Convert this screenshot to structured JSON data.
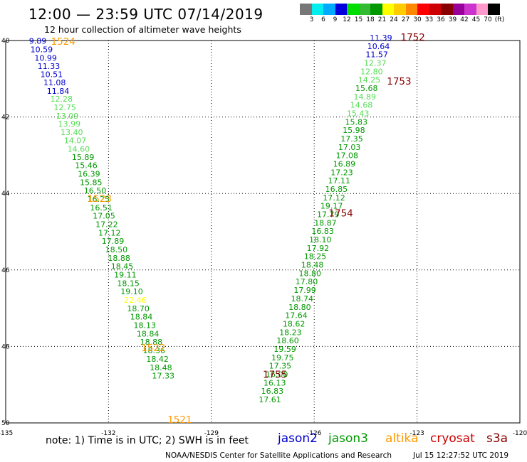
{
  "header": {
    "title": "12:00 — 23:59 UTC 07/14/2019",
    "subtitle": "12 hour collection of altimeter wave heights"
  },
  "colorbar": {
    "colors": [
      "#777777",
      "#00eeee",
      "#00aaff",
      "#0000dd",
      "#00dd00",
      "#33bb33",
      "#009900",
      "#ffff00",
      "#ffcc00",
      "#ff8800",
      "#ff0000",
      "#cc0000",
      "#880000",
      "#990099",
      "#cc33cc",
      "#ff99cc",
      "#000000"
    ],
    "labels": [
      "3",
      "6",
      "9",
      "12",
      "15",
      "18",
      "21",
      "24",
      "27",
      "30",
      "33",
      "36",
      "39",
      "42",
      "45",
      "70",
      "(ft)"
    ]
  },
  "map": {
    "x_ticks": [
      "-135",
      "-132",
      "-129",
      "-126",
      "-123",
      "-120"
    ],
    "y_ticks": [
      "40",
      "42",
      "44",
      "46",
      "48",
      "50"
    ]
  },
  "chart_data": {
    "type": "scatter",
    "axes": {
      "lon_range": [
        -135,
        -120
      ],
      "lat_range": [
        50,
        40
      ]
    },
    "track_colors": {
      "blue": "#0000cc",
      "light": "#55dd55",
      "green": "#009900",
      "yellow": "#ffff00"
    },
    "passes": [
      {
        "name": "1524",
        "color": "#ff9900",
        "lon": -133.68,
        "lat": 40.11
      },
      {
        "name": "1523",
        "color": "#ff9900",
        "lon": -132.62,
        "lat": 44.22
      },
      {
        "name": "1522",
        "color": "#ff9900",
        "lon": -131.05,
        "lat": 48.12
      },
      {
        "name": "1521",
        "color": "#ff9900",
        "lon": -130.28,
        "lat": 50.0
      },
      {
        "name": "1752",
        "color": "#880000",
        "lon": -123.48,
        "lat": 40.0
      },
      {
        "name": "1753",
        "color": "#880000",
        "lon": -123.88,
        "lat": 41.15
      },
      {
        "name": "1754",
        "color": "#880000",
        "lon": -125.58,
        "lat": 44.6
      },
      {
        "name": "1755",
        "color": "#880000",
        "lon": -127.5,
        "lat": 48.82
      }
    ],
    "track_west": [
      {
        "v": "9.89",
        "c": "blue",
        "lon": -134.32,
        "lat": 40.08
      },
      {
        "v": "10.59",
        "c": "blue",
        "lon": -134.28,
        "lat": 40.31
      },
      {
        "v": "10.99",
        "c": "blue",
        "lon": -134.16,
        "lat": 40.53
      },
      {
        "v": "11.33",
        "c": "blue",
        "lon": -134.07,
        "lat": 40.74
      },
      {
        "v": "10.51",
        "c": "blue",
        "lon": -133.99,
        "lat": 40.96
      },
      {
        "v": "11.08",
        "c": "blue",
        "lon": -133.9,
        "lat": 41.17
      },
      {
        "v": "11.84",
        "c": "blue",
        "lon": -133.8,
        "lat": 41.39
      },
      {
        "v": "12.28",
        "c": "light",
        "lon": -133.7,
        "lat": 41.6
      },
      {
        "v": "12.75",
        "c": "light",
        "lon": -133.6,
        "lat": 41.82
      },
      {
        "v": "13.09",
        "c": "light",
        "lon": -133.53,
        "lat": 42.04
      },
      {
        "v": "13.99",
        "c": "light",
        "lon": -133.47,
        "lat": 42.25
      },
      {
        "v": "13.40",
        "c": "light",
        "lon": -133.4,
        "lat": 42.47
      },
      {
        "v": "14.07",
        "c": "light",
        "lon": -133.3,
        "lat": 42.69
      },
      {
        "v": "14.60",
        "c": "light",
        "lon": -133.2,
        "lat": 42.91
      },
      {
        "v": "15.89",
        "c": "green",
        "lon": -133.07,
        "lat": 43.12
      },
      {
        "v": "15.46",
        "c": "green",
        "lon": -132.98,
        "lat": 43.34
      },
      {
        "v": "16.39",
        "c": "green",
        "lon": -132.9,
        "lat": 43.56
      },
      {
        "v": "15.85",
        "c": "green",
        "lon": -132.84,
        "lat": 43.78
      },
      {
        "v": "16.50",
        "c": "green",
        "lon": -132.72,
        "lat": 44.0
      },
      {
        "v": "16.25",
        "c": "green",
        "lon": -132.62,
        "lat": 44.22
      },
      {
        "v": "16.51",
        "c": "green",
        "lon": -132.54,
        "lat": 44.44
      },
      {
        "v": "17.05",
        "c": "green",
        "lon": -132.46,
        "lat": 44.66
      },
      {
        "v": "17.22",
        "c": "green",
        "lon": -132.38,
        "lat": 44.88
      },
      {
        "v": "17.12",
        "c": "green",
        "lon": -132.3,
        "lat": 45.1
      },
      {
        "v": "17.89",
        "c": "green",
        "lon": -132.2,
        "lat": 45.32
      },
      {
        "v": "18.50",
        "c": "green",
        "lon": -132.1,
        "lat": 45.54
      },
      {
        "v": "18.88",
        "c": "green",
        "lon": -132.02,
        "lat": 45.76
      },
      {
        "v": "18.45",
        "c": "green",
        "lon": -131.93,
        "lat": 45.98
      },
      {
        "v": "19.11",
        "c": "green",
        "lon": -131.84,
        "lat": 46.2
      },
      {
        "v": "18.15",
        "c": "green",
        "lon": -131.75,
        "lat": 46.42
      },
      {
        "v": "19.10",
        "c": "green",
        "lon": -131.65,
        "lat": 46.64
      },
      {
        "v": "22.46",
        "c": "yellow",
        "lon": -131.55,
        "lat": 46.86
      },
      {
        "v": "18.70",
        "c": "green",
        "lon": -131.46,
        "lat": 47.08
      },
      {
        "v": "18.84",
        "c": "green",
        "lon": -131.37,
        "lat": 47.3
      },
      {
        "v": "18.13",
        "c": "green",
        "lon": -131.27,
        "lat": 47.52
      },
      {
        "v": "18.84",
        "c": "green",
        "lon": -131.18,
        "lat": 47.74
      },
      {
        "v": "18.88",
        "c": "green",
        "lon": -131.08,
        "lat": 47.96
      },
      {
        "v": "18.36",
        "c": "green",
        "lon": -131.0,
        "lat": 48.18
      },
      {
        "v": "18.42",
        "c": "green",
        "lon": -130.9,
        "lat": 48.4
      },
      {
        "v": "18.48",
        "c": "green",
        "lon": -130.8,
        "lat": 48.62
      },
      {
        "v": "17.33",
        "c": "green",
        "lon": -130.73,
        "lat": 48.84
      }
    ],
    "track_east": [
      {
        "v": "11.39",
        "c": "blue",
        "lon": -124.38,
        "lat": 40.0
      },
      {
        "v": "10.64",
        "c": "blue",
        "lon": -124.45,
        "lat": 40.22
      },
      {
        "v": "11.57",
        "c": "blue",
        "lon": -124.5,
        "lat": 40.44
      },
      {
        "v": "12.37",
        "c": "light",
        "lon": -124.55,
        "lat": 40.66
      },
      {
        "v": "12.80",
        "c": "light",
        "lon": -124.65,
        "lat": 40.88
      },
      {
        "v": "14.25",
        "c": "light",
        "lon": -124.72,
        "lat": 41.1
      },
      {
        "v": "15.68",
        "c": "green",
        "lon": -124.8,
        "lat": 41.32
      },
      {
        "v": "14.89",
        "c": "light",
        "lon": -124.85,
        "lat": 41.54
      },
      {
        "v": "14.68",
        "c": "light",
        "lon": -124.95,
        "lat": 41.76
      },
      {
        "v": "15.43",
        "c": "light",
        "lon": -125.05,
        "lat": 41.98
      },
      {
        "v": "15.83",
        "c": "green",
        "lon": -125.1,
        "lat": 42.2
      },
      {
        "v": "15.98",
        "c": "green",
        "lon": -125.17,
        "lat": 42.42
      },
      {
        "v": "17.35",
        "c": "green",
        "lon": -125.23,
        "lat": 42.64
      },
      {
        "v": "17.03",
        "c": "green",
        "lon": -125.3,
        "lat": 42.86
      },
      {
        "v": "17.08",
        "c": "green",
        "lon": -125.37,
        "lat": 43.08
      },
      {
        "v": "16.89",
        "c": "green",
        "lon": -125.45,
        "lat": 43.3
      },
      {
        "v": "17.23",
        "c": "green",
        "lon": -125.52,
        "lat": 43.52
      },
      {
        "v": "17.11",
        "c": "green",
        "lon": -125.6,
        "lat": 43.74
      },
      {
        "v": "16.85",
        "c": "green",
        "lon": -125.68,
        "lat": 43.96
      },
      {
        "v": "17.12",
        "c": "green",
        "lon": -125.75,
        "lat": 44.18
      },
      {
        "v": "19.17",
        "c": "green",
        "lon": -125.82,
        "lat": 44.4
      },
      {
        "v": "17.79",
        "c": "green",
        "lon": -125.92,
        "lat": 44.62
      },
      {
        "v": "18.87",
        "c": "green",
        "lon": -126.0,
        "lat": 44.84
      },
      {
        "v": "16.83",
        "c": "green",
        "lon": -126.08,
        "lat": 45.06
      },
      {
        "v": "18.10",
        "c": "green",
        "lon": -126.15,
        "lat": 45.28
      },
      {
        "v": "17.92",
        "c": "green",
        "lon": -126.22,
        "lat": 45.5
      },
      {
        "v": "18.25",
        "c": "green",
        "lon": -126.3,
        "lat": 45.72
      },
      {
        "v": "18.48",
        "c": "green",
        "lon": -126.38,
        "lat": 45.94
      },
      {
        "v": "18.80",
        "c": "green",
        "lon": -126.45,
        "lat": 46.16
      },
      {
        "v": "17.80",
        "c": "green",
        "lon": -126.55,
        "lat": 46.38
      },
      {
        "v": "17.99",
        "c": "green",
        "lon": -126.6,
        "lat": 46.6
      },
      {
        "v": "18.74",
        "c": "green",
        "lon": -126.68,
        "lat": 46.82
      },
      {
        "v": "18.80",
        "c": "green",
        "lon": -126.75,
        "lat": 47.04
      },
      {
        "v": "17.64",
        "c": "green",
        "lon": -126.85,
        "lat": 47.26
      },
      {
        "v": "18.62",
        "c": "green",
        "lon": -126.92,
        "lat": 47.48
      },
      {
        "v": "18.23",
        "c": "green",
        "lon": -127.02,
        "lat": 47.7
      },
      {
        "v": "18.60",
        "c": "green",
        "lon": -127.1,
        "lat": 47.92
      },
      {
        "v": "19.59",
        "c": "green",
        "lon": -127.18,
        "lat": 48.14
      },
      {
        "v": "19.75",
        "c": "green",
        "lon": -127.25,
        "lat": 48.36
      },
      {
        "v": "17.35",
        "c": "green",
        "lon": -127.32,
        "lat": 48.58
      },
      {
        "v": "16.00",
        "c": "green",
        "lon": -127.42,
        "lat": 48.8
      },
      {
        "v": "16.13",
        "c": "green",
        "lon": -127.48,
        "lat": 49.02
      },
      {
        "v": "16.83",
        "c": "green",
        "lon": -127.55,
        "lat": 49.24
      },
      {
        "v": "17.61",
        "c": "green",
        "lon": -127.62,
        "lat": 49.46
      }
    ]
  },
  "footer": {
    "note": "note: 1) Time is in UTC; 2) SWH is in feet",
    "satellites": [
      {
        "name": "jason2",
        "color": "#0000cc"
      },
      {
        "name": "jason3",
        "color": "#009900"
      },
      {
        "name": "altika",
        "color": "#ff9900"
      },
      {
        "name": "cryosat",
        "color": "#cc0000"
      },
      {
        "name": "s3a",
        "color": "#880000"
      }
    ],
    "credit": "NOAA/NESDIS Center for Satellite Applications and Research",
    "timestamp": "Jul 15 12:27:52 UTC 2019"
  }
}
